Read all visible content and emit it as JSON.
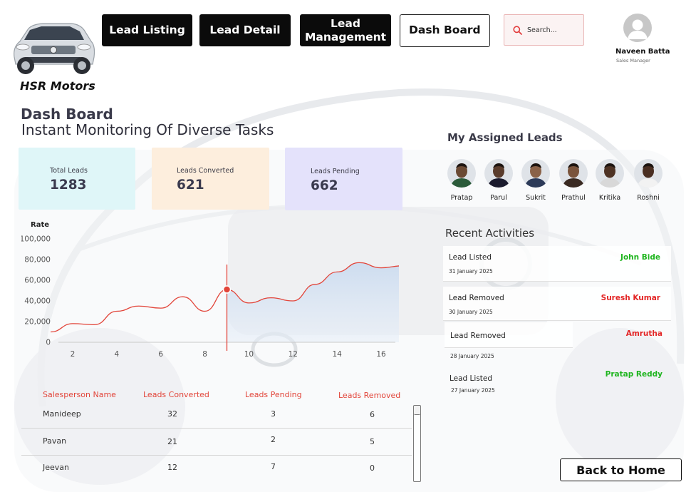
{
  "brand": {
    "name": "HSR Motors"
  },
  "nav": {
    "lead_listing": "Lead Listing",
    "lead_detail": "Lead Detail",
    "lead_management": "Lead Management",
    "dashboard": "Dash Board"
  },
  "search": {
    "placeholder": "Search..."
  },
  "user": {
    "name": "Naveen Batta",
    "role": "Sales Manager"
  },
  "page": {
    "title": "Dash Board",
    "subtitle": "Instant Monitoring Of Diverse Tasks"
  },
  "stats": [
    {
      "label": "Total Leads",
      "value": "1283",
      "color": "#dff6f8"
    },
    {
      "label": "Leads Converted",
      "value": "621",
      "color": "#fdeedd"
    },
    {
      "label": "Leads Pending",
      "value": "662",
      "color": "#e4e2fb"
    }
  ],
  "chart_data": {
    "type": "area",
    "ylabel": "Rate",
    "x_ticks": [
      2,
      4,
      6,
      8,
      10,
      12,
      14,
      16
    ],
    "y_ticks": [
      "0",
      "20,000",
      "40,000",
      "60,000",
      "80,000",
      "100,000"
    ],
    "ylim": [
      0,
      100000
    ],
    "xlim": [
      1,
      17
    ],
    "line_color": "#e2453a",
    "highlight_x": 9,
    "highlight_y": 51000,
    "x": [
      1,
      2,
      3,
      4,
      5,
      6,
      7,
      8,
      9,
      10,
      11,
      12,
      13,
      14,
      15,
      16,
      17
    ],
    "y": [
      10000,
      18000,
      17000,
      30000,
      35000,
      33000,
      44000,
      30000,
      51000,
      38000,
      43000,
      40000,
      56000,
      68000,
      77000,
      72000,
      74000
    ]
  },
  "table": {
    "headers": [
      "Salesperson Name",
      "Leads Converted",
      "Leads Pending",
      "Leads Removed"
    ],
    "rows": [
      {
        "name": "Manideep",
        "converted": "32",
        "pending": "3",
        "removed": "6"
      },
      {
        "name": "Pavan",
        "converted": "21",
        "pending": "2",
        "removed": "5"
      },
      {
        "name": "Jeevan",
        "converted": "12",
        "pending": "7",
        "removed": "0"
      }
    ]
  },
  "assigned": {
    "title": "My Assigned Leads",
    "leads": [
      {
        "name": "Pratap",
        "skin": "#6b4a34",
        "shirt": "#2b5b3a"
      },
      {
        "name": "Parul",
        "skin": "#5a3c2c",
        "shirt": "#1b1b2e"
      },
      {
        "name": "Sukrit",
        "skin": "#8a6248",
        "shirt": "#2c3a58"
      },
      {
        "name": "Prathul",
        "skin": "#7a543c",
        "shirt": "#3a2a22"
      },
      {
        "name": "Kritika",
        "skin": "#4e3324",
        "shirt": "#d8d8d8"
      },
      {
        "name": "Roshni",
        "skin": "#4a2f22",
        "shirt": "#f2f2f2"
      }
    ]
  },
  "recent": {
    "title": "Recent Activities",
    "items": [
      {
        "title": "Lead Listed",
        "date": "31 January 2025",
        "person": "John Bide",
        "color": "#1fb51f"
      },
      {
        "title": "Lead Removed",
        "date": "30 January 2025",
        "person": "Suresh Kumar",
        "color": "#e32626"
      },
      {
        "title": "Lead Removed",
        "date": "28 January 2025",
        "person": "Amrutha",
        "color": "#e32626"
      },
      {
        "title": "Lead  Listed",
        "date": "27 January 2025",
        "person": "Pratap Reddy",
        "color": "#1fb51f"
      }
    ]
  },
  "back_button": "Back to Home"
}
